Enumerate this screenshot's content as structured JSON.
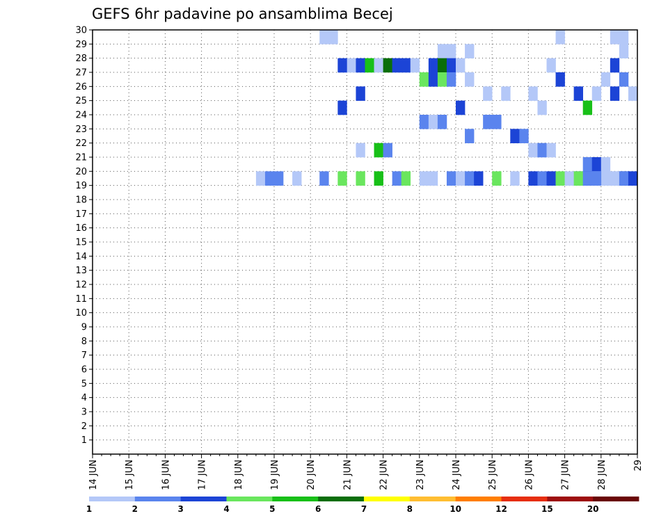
{
  "chart_data": {
    "type": "heatmap",
    "title": "GEFS 6hr padavine po ansamblima Becej",
    "xlabel": "",
    "ylabel": "",
    "x_tick_labels": [
      "14 JUN",
      "15 JUN",
      "16 JUN",
      "17 JUN",
      "18 JUN",
      "19 JUN",
      "20 JUN",
      "21 JUN",
      "22 JUN",
      "23 JUN",
      "24 JUN",
      "25 JUN",
      "26 JUN",
      "27 JUN",
      "28 JUN",
      "29"
    ],
    "y_tick_labels": [
      "1",
      "2",
      "3",
      "4",
      "5",
      "6",
      "7",
      "8",
      "9",
      "10",
      "11",
      "12",
      "13",
      "14",
      "15",
      "16",
      "17",
      "18",
      "19",
      "20",
      "21",
      "22",
      "23",
      "24",
      "25",
      "26",
      "27",
      "28",
      "29",
      "30"
    ],
    "xlim": [
      0,
      60
    ],
    "ylim": [
      0,
      30
    ],
    "grid": true,
    "legend_placement": "bottom",
    "color_scale": {
      "labels": [
        "1",
        "2",
        "3",
        "4",
        "5",
        "6",
        "7",
        "8",
        "10",
        "12",
        "15",
        "20"
      ],
      "colors": [
        "#b4c8f8",
        "#5a84ee",
        "#1c44d6",
        "#6ae65e",
        "#18c018",
        "#0a6e0a",
        "#ffff00",
        "#ffbe32",
        "#ff7e00",
        "#e62e0e",
        "#9e0e0e",
        "#6a0606"
      ]
    },
    "cells": [
      [
        38,
        28,
        1
      ],
      [
        39,
        28,
        1
      ],
      [
        41,
        28,
        1
      ],
      [
        58,
        28,
        1
      ],
      [
        51,
        29,
        1
      ],
      [
        57,
        29,
        1
      ],
      [
        58,
        29,
        1
      ],
      [
        25,
        29,
        1
      ],
      [
        26,
        29,
        1
      ],
      [
        28,
        27,
        1
      ],
      [
        29,
        27,
        3
      ],
      [
        30,
        27,
        5
      ],
      [
        31,
        27,
        1
      ],
      [
        32,
        27,
        6
      ],
      [
        33,
        27,
        3
      ],
      [
        34,
        27,
        3
      ],
      [
        35,
        27,
        1
      ],
      [
        27,
        27,
        3
      ],
      [
        37,
        27,
        3
      ],
      [
        38,
        27,
        6
      ],
      [
        39,
        27,
        3
      ],
      [
        40,
        27,
        1
      ],
      [
        50,
        27,
        1
      ],
      [
        57,
        27,
        3
      ],
      [
        36,
        26,
        4
      ],
      [
        37,
        26,
        3
      ],
      [
        38,
        26,
        4
      ],
      [
        39,
        26,
        2
      ],
      [
        41,
        26,
        1
      ],
      [
        51,
        26,
        3
      ],
      [
        56,
        26,
        1
      ],
      [
        58,
        26,
        2
      ],
      [
        29,
        25,
        3
      ],
      [
        43,
        25,
        1
      ],
      [
        45,
        25,
        1
      ],
      [
        48,
        25,
        1
      ],
      [
        53,
        25,
        3
      ],
      [
        55,
        25,
        1
      ],
      [
        57,
        25,
        3
      ],
      [
        59,
        25,
        1
      ],
      [
        27,
        24,
        3
      ],
      [
        40,
        24,
        3
      ],
      [
        49,
        24,
        1
      ],
      [
        54,
        24,
        5
      ],
      [
        36,
        23,
        2
      ],
      [
        37,
        23,
        1
      ],
      [
        38,
        23,
        2
      ],
      [
        43,
        23,
        2
      ],
      [
        44,
        23,
        2
      ],
      [
        41,
        22,
        2
      ],
      [
        46,
        22,
        3
      ],
      [
        47,
        22,
        2
      ],
      [
        29,
        21,
        1
      ],
      [
        31,
        21,
        5
      ],
      [
        32,
        21,
        2
      ],
      [
        48,
        21,
        1
      ],
      [
        49,
        21,
        2
      ],
      [
        50,
        21,
        1
      ],
      [
        54,
        20,
        2
      ],
      [
        55,
        20,
        3
      ],
      [
        56,
        20,
        1
      ],
      [
        53,
        19,
        3
      ],
      [
        54,
        19,
        3
      ],
      [
        55,
        19,
        1
      ],
      [
        56,
        19,
        1
      ],
      [
        57,
        19,
        1
      ],
      [
        58,
        19,
        3
      ],
      [
        18,
        19,
        1
      ],
      [
        19,
        19,
        2
      ],
      [
        20,
        19,
        2
      ],
      [
        22,
        19,
        1
      ],
      [
        25,
        19,
        2
      ],
      [
        27,
        19,
        4
      ],
      [
        29,
        19,
        4
      ],
      [
        31,
        19,
        5
      ],
      [
        33,
        19,
        2
      ],
      [
        34,
        19,
        4
      ],
      [
        36,
        19,
        1
      ],
      [
        37,
        19,
        1
      ],
      [
        39,
        19,
        2
      ],
      [
        40,
        19,
        1
      ],
      [
        41,
        19,
        2
      ],
      [
        42,
        19,
        3
      ],
      [
        44,
        19,
        4
      ],
      [
        46,
        19,
        1
      ],
      [
        48,
        19,
        3
      ],
      [
        49,
        19,
        2
      ],
      [
        50,
        19,
        3
      ],
      [
        51,
        19,
        4
      ],
      [
        52,
        19,
        1
      ],
      [
        53,
        19,
        4
      ],
      [
        54,
        19,
        2
      ],
      [
        55,
        19,
        2
      ],
      [
        57,
        19,
        1
      ],
      [
        58,
        19,
        2
      ],
      [
        59,
        19,
        3
      ]
    ]
  }
}
